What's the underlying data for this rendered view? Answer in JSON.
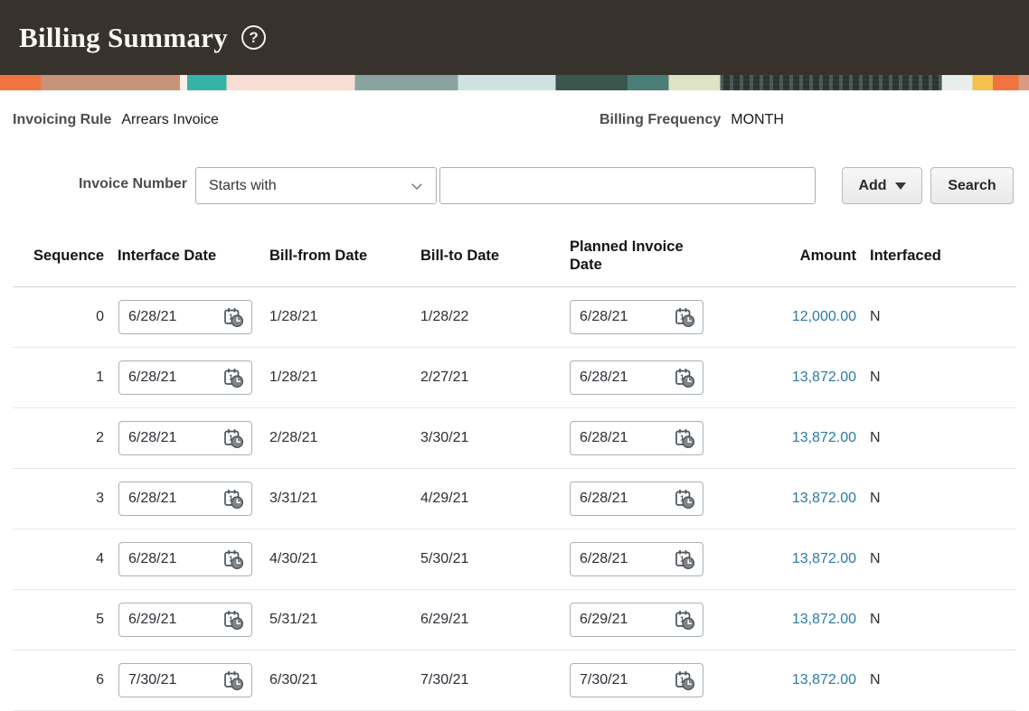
{
  "header": {
    "title": "Billing Summary",
    "help_icon": "?"
  },
  "info": {
    "invoicing_rule_label": "Invoicing Rule",
    "invoicing_rule_value": "Arrears Invoice",
    "billing_frequency_label": "Billing Frequency",
    "billing_frequency_value": "MONTH"
  },
  "search": {
    "label": "Invoice Number",
    "operator_selected": "Starts with",
    "input_value": "",
    "input_placeholder": "",
    "add_label": "Add",
    "search_label": "Search"
  },
  "table": {
    "columns": {
      "sequence": "Sequence",
      "interface_date": "Interface Date",
      "bill_from": "Bill-from Date",
      "bill_to": "Bill-to Date",
      "planned_invoice_date": "Planned Invoice Date",
      "amount": "Amount",
      "interfaced": "Interfaced"
    },
    "rows": [
      {
        "sequence": "0",
        "interface_date": "6/28/21",
        "bill_from": "1/28/21",
        "bill_to": "1/28/22",
        "planned_invoice_date": "6/28/21",
        "amount": "12,000.00",
        "interfaced": "N"
      },
      {
        "sequence": "1",
        "interface_date": "6/28/21",
        "bill_from": "1/28/21",
        "bill_to": "2/27/21",
        "planned_invoice_date": "6/28/21",
        "amount": "13,872.00",
        "interfaced": "N"
      },
      {
        "sequence": "2",
        "interface_date": "6/28/21",
        "bill_from": "2/28/21",
        "bill_to": "3/30/21",
        "planned_invoice_date": "6/28/21",
        "amount": "13,872.00",
        "interfaced": "N"
      },
      {
        "sequence": "3",
        "interface_date": "6/28/21",
        "bill_from": "3/31/21",
        "bill_to": "4/29/21",
        "planned_invoice_date": "6/28/21",
        "amount": "13,872.00",
        "interfaced": "N"
      },
      {
        "sequence": "4",
        "interface_date": "6/28/21",
        "bill_from": "4/30/21",
        "bill_to": "5/30/21",
        "planned_invoice_date": "6/28/21",
        "amount": "13,872.00",
        "interfaced": "N"
      },
      {
        "sequence": "5",
        "interface_date": "6/29/21",
        "bill_from": "5/31/21",
        "bill_to": "6/29/21",
        "planned_invoice_date": "6/29/21",
        "amount": "13,872.00",
        "interfaced": "N"
      },
      {
        "sequence": "6",
        "interface_date": "7/30/21",
        "bill_from": "6/30/21",
        "bill_to": "7/30/21",
        "planned_invoice_date": "7/30/21",
        "amount": "13,872.00",
        "interfaced": "N"
      }
    ],
    "icons": {
      "date_picker": "calendar-clock-icon"
    }
  },
  "theme": {
    "header_bg": "#38322d",
    "amount_link_color": "#2a7ba3",
    "banner_accent_orange": "#ef7440",
    "banner_accent_teal": "#35b3a7"
  }
}
